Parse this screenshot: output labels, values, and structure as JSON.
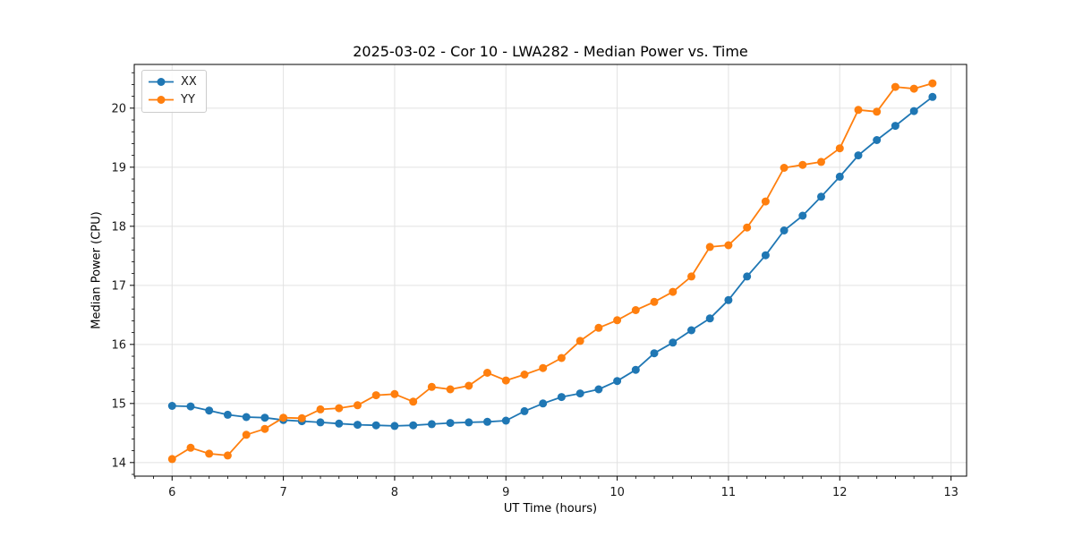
{
  "figure": {
    "background": "#ffffff"
  },
  "chart_data": {
    "type": "line",
    "title": "2025-03-02 - Cor 10 - LWA282 - Median Power vs. Time",
    "xlabel": "UT Time (hours)",
    "ylabel": "Median Power (CPU)",
    "xlim": [
      5.66,
      13.14
    ],
    "ylim": [
      13.77,
      20.74
    ],
    "xticks": [
      6,
      7,
      8,
      9,
      10,
      11,
      12,
      13
    ],
    "yticks": [
      14,
      15,
      16,
      17,
      18,
      19,
      20
    ],
    "x_minor_divisions": 6,
    "y_minor_divisions": 5,
    "grid": true,
    "grid_color": "#e2e2e2",
    "axis_color": "#000000",
    "text_color": "#1a1a1a",
    "legend_location": "upper left",
    "x": [
      6.0,
      6.1667,
      6.3333,
      6.5,
      6.6667,
      6.8333,
      7.0,
      7.1667,
      7.3333,
      7.5,
      7.6667,
      7.8333,
      8.0,
      8.1667,
      8.3333,
      8.5,
      8.6667,
      8.8333,
      9.0,
      9.1667,
      9.3333,
      9.5,
      9.6667,
      9.8333,
      10.0,
      10.1667,
      10.3333,
      10.5,
      10.6667,
      10.8333,
      11.0,
      11.1667,
      11.3333,
      11.5,
      11.6667,
      11.8333,
      12.0,
      12.1667,
      12.3333,
      12.5,
      12.6667,
      12.8333
    ],
    "series": [
      {
        "name": "XX",
        "color": "#1f77b4",
        "values": [
          14.96,
          14.95,
          14.88,
          14.81,
          14.77,
          14.76,
          14.72,
          14.7,
          14.68,
          14.66,
          14.64,
          14.63,
          14.62,
          14.63,
          14.65,
          14.67,
          14.68,
          14.69,
          14.71,
          14.87,
          15.0,
          15.11,
          15.17,
          15.24,
          15.38,
          15.57,
          15.85,
          16.03,
          16.24,
          16.44,
          16.75,
          17.15,
          17.51,
          17.93,
          18.18,
          18.5,
          18.84,
          19.2,
          19.46,
          19.7,
          19.95,
          20.19
        ]
      },
      {
        "name": "YY",
        "color": "#ff7f0e",
        "values": [
          14.06,
          14.25,
          14.15,
          14.12,
          14.47,
          14.57,
          14.76,
          14.75,
          14.9,
          14.92,
          14.97,
          15.14,
          15.16,
          15.03,
          15.28,
          15.24,
          15.3,
          15.52,
          15.39,
          15.49,
          15.6,
          15.77,
          16.06,
          16.28,
          16.41,
          16.58,
          16.72,
          16.89,
          17.15,
          17.65,
          17.68,
          17.98,
          18.42,
          18.99,
          19.04,
          19.09,
          19.32,
          19.97,
          19.94,
          20.36,
          20.33,
          20.42
        ]
      }
    ]
  }
}
